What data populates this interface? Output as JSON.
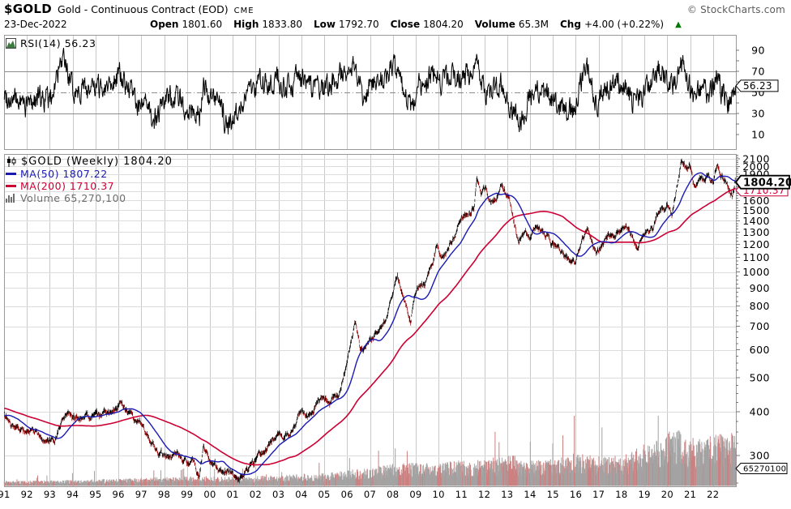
{
  "header": {
    "symbol": "$GOLD",
    "name": "Gold - Continuous Contract (EOD)",
    "exchange": "CME",
    "credit": "© StockCharts.com",
    "date": "23-Dec-2022",
    "quote": [
      {
        "label": "Open",
        "value": "1801.60"
      },
      {
        "label": "High",
        "value": "1833.80"
      },
      {
        "label": "Low",
        "value": "1792.70"
      },
      {
        "label": "Close",
        "value": "1804.20"
      },
      {
        "label": "Volume",
        "value": "65.3M"
      },
      {
        "label": "Chg",
        "value": "+4.00 (+0.22%)"
      }
    ],
    "chg_arrow": "▲"
  },
  "rsi_panel": {
    "legend": "RSI(14) 56.23",
    "axis_labels": [
      90,
      70,
      50,
      30,
      10
    ],
    "current_label": "56.23"
  },
  "main_panel": {
    "legend_symbol": "$GOLD (Weekly) 1804.20",
    "legend_ma50": "MA(50) 1807.22",
    "legend_ma200": "MA(200) 1710.37",
    "legend_volume": "Volume 65,270,100",
    "price_label": "1804.20",
    "ma200_label": "1710.37",
    "volume_label": "65270100",
    "axis_labels": [
      2100,
      2000,
      1900,
      1600,
      1500,
      1400,
      1300,
      1200,
      1100,
      1000,
      900,
      800,
      700,
      600,
      500,
      400,
      300
    ]
  },
  "x_axis": {
    "years": [
      "91",
      "92",
      "93",
      "94",
      "95",
      "96",
      "97",
      "98",
      "99",
      "00",
      "01",
      "02",
      "03",
      "04",
      "05",
      "06",
      "07",
      "08",
      "09",
      "10",
      "11",
      "12",
      "13",
      "14",
      "15",
      "16",
      "17",
      "18",
      "19",
      "20",
      "21",
      "22"
    ]
  },
  "colors": {
    "accent_green": "#007700",
    "credit": "#5c5c5c",
    "grid_v": "#c9c9c9",
    "grid_h": "#dcdcdc",
    "panel_border": "#999999",
    "band_line": "#8c8c8c",
    "rsi_line": "#000000",
    "candle_up": "#000000",
    "candle_down": "#990000",
    "ma50": "#1a1ab3",
    "ma200": "#cc0033",
    "vol_rose": "#cc8080",
    "vol_gray": "#a3a3a3",
    "volume_text": "#6e6e6e",
    "axis_text": "#000000"
  },
  "chart_data": {
    "type": "candlestick",
    "title": "$GOLD Gold - Continuous Contract (EOD) CME, weekly, with RSI(14), MA(50), MA(200) and volume",
    "x_range_years": [
      1991,
      2023
    ],
    "price_log_scale": true,
    "price_axis_range": [
      245,
      2170
    ],
    "price_tick_step": 100,
    "last": {
      "date": "23-Dec-2022",
      "open": 1801.6,
      "high": 1833.8,
      "low": 1792.7,
      "close": 1804.2,
      "volume": 65270100,
      "chg": 4.0,
      "chg_pct": 0.22,
      "ma50": 1807.22,
      "ma200": 1710.37
    },
    "rsi_axis": {
      "labels": [
        90,
        70,
        50,
        30,
        10
      ],
      "overbought": 70,
      "oversold": 30,
      "mid": 50,
      "last": 56.23
    },
    "price_anchors": [
      [
        1987.2,
        460
      ],
      [
        1988,
        430
      ],
      [
        1989,
        400
      ],
      [
        1990,
        388
      ],
      [
        1990.6,
        398
      ],
      [
        1991,
        390
      ],
      [
        1991.3,
        365
      ],
      [
        1991.6,
        360
      ],
      [
        1992,
        355
      ],
      [
        1992.5,
        345
      ],
      [
        1992.9,
        335
      ],
      [
        1993.2,
        330
      ],
      [
        1993.5,
        375
      ],
      [
        1993.7,
        398
      ],
      [
        1994,
        385
      ],
      [
        1994.5,
        388
      ],
      [
        1995,
        378
      ],
      [
        1995.5,
        386
      ],
      [
        1996.1,
        412
      ],
      [
        1996.5,
        388
      ],
      [
        1997,
        358
      ],
      [
        1997.5,
        325
      ],
      [
        1998,
        297
      ],
      [
        1998.4,
        308
      ],
      [
        1998.8,
        292
      ],
      [
        1999.3,
        282
      ],
      [
        1999.55,
        258
      ],
      [
        1999.72,
        320
      ],
      [
        2000,
        288
      ],
      [
        2000.3,
        278
      ],
      [
        2000.7,
        274
      ],
      [
        2001,
        266
      ],
      [
        2001.3,
        258
      ],
      [
        2001.7,
        278
      ],
      [
        2002,
        288
      ],
      [
        2002.5,
        320
      ],
      [
        2002.9,
        342
      ],
      [
        2003.2,
        338
      ],
      [
        2003.6,
        362
      ],
      [
        2004,
        408
      ],
      [
        2004.4,
        392
      ],
      [
        2004.9,
        442
      ],
      [
        2005.3,
        428
      ],
      [
        2005.7,
        462
      ],
      [
        2006,
        545
      ],
      [
        2006.35,
        715
      ],
      [
        2006.6,
        590
      ],
      [
        2006.9,
        635
      ],
      [
        2007.3,
        665
      ],
      [
        2007.7,
        738
      ],
      [
        2008,
        890
      ],
      [
        2008.2,
        995
      ],
      [
        2008.5,
        870
      ],
      [
        2008.78,
        732
      ],
      [
        2009,
        895
      ],
      [
        2009.4,
        925
      ],
      [
        2009.9,
        1170
      ],
      [
        2010.2,
        1105
      ],
      [
        2010.5,
        1210
      ],
      [
        2010.9,
        1385
      ],
      [
        2011.2,
        1435
      ],
      [
        2011.55,
        1545
      ],
      [
        2011.68,
        1870
      ],
      [
        2011.85,
        1640
      ],
      [
        2012,
        1720
      ],
      [
        2012.35,
        1580
      ],
      [
        2012.75,
        1770
      ],
      [
        2013,
        1660
      ],
      [
        2013.3,
        1395
      ],
      [
        2013.5,
        1230
      ],
      [
        2013.8,
        1320
      ],
      [
        2014.05,
        1245
      ],
      [
        2014.25,
        1330
      ],
      [
        2014.7,
        1290
      ],
      [
        2014.92,
        1185
      ],
      [
        2015.2,
        1200
      ],
      [
        2015.6,
        1090
      ],
      [
        2015.95,
        1062
      ],
      [
        2016.3,
        1255
      ],
      [
        2016.55,
        1360
      ],
      [
        2016.9,
        1135
      ],
      [
        2017.3,
        1250
      ],
      [
        2017.7,
        1290
      ],
      [
        2018.05,
        1335
      ],
      [
        2018.35,
        1320
      ],
      [
        2018.7,
        1195
      ],
      [
        2019,
        1285
      ],
      [
        2019.4,
        1345
      ],
      [
        2019.7,
        1510
      ],
      [
        2020,
        1560
      ],
      [
        2020.22,
        1480
      ],
      [
        2020.6,
        2045
      ],
      [
        2020.82,
        1940
      ],
      [
        2021,
        1945
      ],
      [
        2021.2,
        1735
      ],
      [
        2021.4,
        1815
      ],
      [
        2021.6,
        1790
      ],
      [
        2021.82,
        1860
      ],
      [
        2022,
        1800
      ],
      [
        2022.18,
        2035
      ],
      [
        2022.4,
        1895
      ],
      [
        2022.55,
        1820
      ],
      [
        2022.72,
        1710
      ],
      [
        2022.85,
        1640
      ],
      [
        2022.97,
        1804.2
      ]
    ],
    "rsi_anchors": [
      [
        1991,
        48
      ],
      [
        1991.5,
        42
      ],
      [
        1992,
        38
      ],
      [
        1992.5,
        46
      ],
      [
        1993,
        42
      ],
      [
        1993.4,
        72
      ],
      [
        1993.65,
        78
      ],
      [
        1994,
        52
      ],
      [
        1994.5,
        55
      ],
      [
        1995,
        52
      ],
      [
        1995.5,
        58
      ],
      [
        1996,
        68
      ],
      [
        1996.3,
        58
      ],
      [
        1996.8,
        42
      ],
      [
        1997.2,
        35
      ],
      [
        1997.6,
        25
      ],
      [
        1998,
        40
      ],
      [
        1998.4,
        46
      ],
      [
        1998.8,
        40
      ],
      [
        1999.2,
        34
      ],
      [
        1999.55,
        28
      ],
      [
        1999.72,
        62
      ],
      [
        2000,
        45
      ],
      [
        2000.4,
        38
      ],
      [
        2000.8,
        16
      ],
      [
        2001.2,
        34
      ],
      [
        2001.5,
        45
      ],
      [
        2002,
        58
      ],
      [
        2002.5,
        62
      ],
      [
        2003,
        64
      ],
      [
        2003.3,
        48
      ],
      [
        2003.8,
        64
      ],
      [
        2004.2,
        60
      ],
      [
        2004.6,
        52
      ],
      [
        2005,
        55
      ],
      [
        2005.5,
        62
      ],
      [
        2006,
        72
      ],
      [
        2006.35,
        76
      ],
      [
        2006.7,
        46
      ],
      [
        2007,
        55
      ],
      [
        2007.5,
        62
      ],
      [
        2007.9,
        74
      ],
      [
        2008.2,
        70
      ],
      [
        2008.5,
        48
      ],
      [
        2008.8,
        34
      ],
      [
        2009.1,
        55
      ],
      [
        2009.4,
        58
      ],
      [
        2009.8,
        72
      ],
      [
        2010.2,
        58
      ],
      [
        2010.6,
        65
      ],
      [
        2011,
        62
      ],
      [
        2011.4,
        68
      ],
      [
        2011.68,
        80
      ],
      [
        2012,
        52
      ],
      [
        2012.4,
        50
      ],
      [
        2012.8,
        58
      ],
      [
        2013,
        46
      ],
      [
        2013.3,
        28
      ],
      [
        2013.6,
        22
      ],
      [
        2014,
        46
      ],
      [
        2014.5,
        52
      ],
      [
        2015,
        42
      ],
      [
        2015.5,
        34
      ],
      [
        2015.95,
        30
      ],
      [
        2016.2,
        62
      ],
      [
        2016.55,
        70
      ],
      [
        2016.9,
        40
      ],
      [
        2017.3,
        52
      ],
      [
        2017.7,
        58
      ],
      [
        2018.05,
        58
      ],
      [
        2018.5,
        42
      ],
      [
        2018.9,
        48
      ],
      [
        2019.3,
        58
      ],
      [
        2019.65,
        74
      ],
      [
        2020,
        62
      ],
      [
        2020.3,
        58
      ],
      [
        2020.6,
        80
      ],
      [
        2020.9,
        56
      ],
      [
        2021.2,
        44
      ],
      [
        2021.5,
        54
      ],
      [
        2021.9,
        50
      ],
      [
        2022.2,
        66
      ],
      [
        2022.5,
        42
      ],
      [
        2022.8,
        38
      ],
      [
        2022.97,
        56.23
      ]
    ],
    "volume_rel_anchors": [
      [
        1991,
        0.05
      ],
      [
        1994,
        0.06
      ],
      [
        1997,
        0.08
      ],
      [
        1999,
        0.1
      ],
      [
        2001,
        0.09
      ],
      [
        2003,
        0.11
      ],
      [
        2005,
        0.13
      ],
      [
        2006,
        0.16
      ],
      [
        2007,
        0.18
      ],
      [
        2008,
        0.22
      ],
      [
        2009,
        0.24
      ],
      [
        2010,
        0.22
      ],
      [
        2011,
        0.27
      ],
      [
        2012,
        0.26
      ],
      [
        2013,
        0.32
      ],
      [
        2014,
        0.26
      ],
      [
        2015,
        0.27
      ],
      [
        2016,
        0.33
      ],
      [
        2017,
        0.3
      ],
      [
        2018,
        0.3
      ],
      [
        2019,
        0.42
      ],
      [
        2019.8,
        0.5
      ],
      [
        2020.4,
        0.6
      ],
      [
        2020.6,
        0.55
      ],
      [
        2021,
        0.48
      ],
      [
        2022,
        0.52
      ],
      [
        2022.97,
        0.55
      ]
    ]
  }
}
